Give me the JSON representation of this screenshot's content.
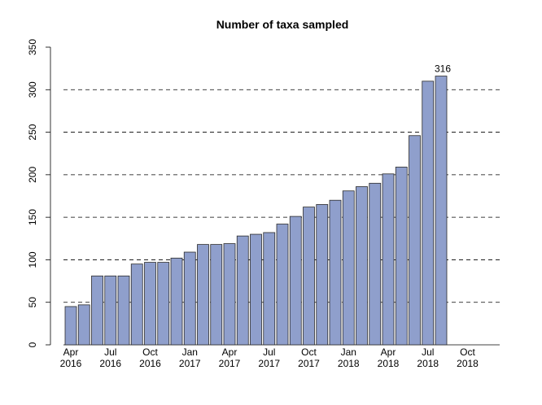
{
  "chart_data": {
    "type": "bar",
    "title": "Number of taxa sampled",
    "xlabel": "",
    "ylabel": "",
    "ylim": [
      0,
      350
    ],
    "y_ticks": [
      0,
      50,
      100,
      150,
      200,
      250,
      300,
      350
    ],
    "grid": "horizontal dashed at 50, 100, 150, 200, 250, 300",
    "bar_color": "#8f9fcc",
    "categories": [
      "Apr 2016",
      "May 2016",
      "Jun 2016",
      "Jul 2016",
      "Aug 2016",
      "Sep 2016",
      "Oct 2016",
      "Nov 2016",
      "Dec 2016",
      "Jan 2017",
      "Feb 2017",
      "Mar 2017",
      "Apr 2017",
      "May 2017",
      "Jun 2017",
      "Jul 2017",
      "Aug 2017",
      "Sep 2017",
      "Oct 2017",
      "Nov 2017",
      "Dec 2017",
      "Jan 2018",
      "Feb 2018",
      "Mar 2018",
      "Apr 2018",
      "May 2018",
      "Jun 2018",
      "Jul 2018",
      "Aug 2018",
      "Sep 2018",
      "Oct 2018",
      "Nov 2018"
    ],
    "values": [
      45,
      47,
      81,
      81,
      81,
      95,
      97,
      97,
      102,
      109,
      118,
      118,
      119,
      128,
      130,
      132,
      142,
      151,
      162,
      165,
      170,
      181,
      186,
      190,
      201,
      209,
      246,
      310,
      316,
      0,
      0,
      0
    ],
    "x_tick_labels": [
      {
        "index": 0,
        "month": "Apr",
        "year": "2016"
      },
      {
        "index": 3,
        "month": "Jul",
        "year": "2016"
      },
      {
        "index": 6,
        "month": "Oct",
        "year": "2016"
      },
      {
        "index": 9,
        "month": "Jan",
        "year": "2017"
      },
      {
        "index": 12,
        "month": "Apr",
        "year": "2017"
      },
      {
        "index": 15,
        "month": "Jul",
        "year": "2017"
      },
      {
        "index": 18,
        "month": "Oct",
        "year": "2017"
      },
      {
        "index": 21,
        "month": "Jan",
        "year": "2018"
      },
      {
        "index": 24,
        "month": "Apr",
        "year": "2018"
      },
      {
        "index": 27,
        "month": "Jul",
        "year": "2018"
      },
      {
        "index": 30,
        "month": "Oct",
        "year": "2018"
      }
    ],
    "annotations": [
      {
        "index": 28,
        "text": "316"
      }
    ]
  }
}
